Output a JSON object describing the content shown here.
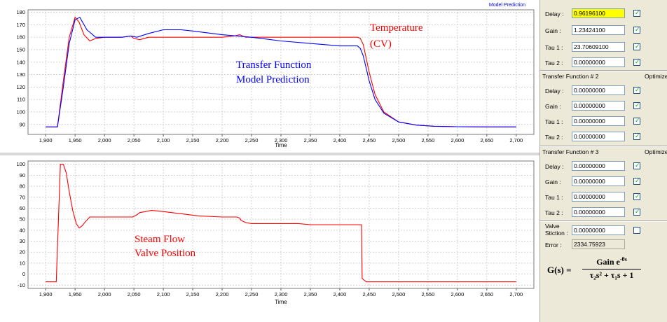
{
  "chart_data": [
    {
      "type": "line",
      "title": "",
      "corner_label": "Model Prediction",
      "xlabel": "Time",
      "ylabel": "",
      "xlim": [
        1870,
        2730
      ],
      "ylim": [
        82,
        182
      ],
      "x_ticks": [
        1900,
        1950,
        2000,
        2050,
        2100,
        2150,
        2200,
        2250,
        2300,
        2350,
        2400,
        2450,
        2500,
        2550,
        2600,
        2650,
        2700
      ],
      "x_tick_labels": [
        "1,900",
        "1,950",
        "2,000",
        "2,050",
        "2,100",
        "2,150",
        "2,200",
        "2,250",
        "2,300",
        "2,350",
        "2,400",
        "2,450",
        "2,500",
        "2,550",
        "2,600",
        "2,650",
        "2,700"
      ],
      "y_ticks": [
        90,
        100,
        110,
        120,
        130,
        140,
        150,
        160,
        170,
        180
      ],
      "grid": true,
      "annotations": [
        {
          "text": "Temperature",
          "color": "#ff0000"
        },
        {
          "text": "(CV)",
          "color": "#ff0000"
        },
        {
          "text": "Transfer Function",
          "color": "#0000ff"
        },
        {
          "text": "Model Prediction",
          "color": "#0000ff"
        }
      ],
      "series": [
        {
          "color": "#ff0000",
          "x": [
            1900,
            1915,
            1920,
            1930,
            1940,
            1950,
            1957,
            1965,
            1975,
            1985,
            2000,
            2030,
            2045,
            2050,
            2060,
            2075,
            2100,
            2150,
            2200,
            2220,
            2230,
            2240,
            2260,
            2300,
            2350,
            2400,
            2430,
            2435,
            2440,
            2450,
            2460,
            2475,
            2500,
            2530,
            2560,
            2600,
            2650,
            2700
          ],
          "y": [
            88,
            88,
            88,
            125,
            160,
            176,
            172,
            162,
            157,
            159,
            160,
            160,
            161,
            159,
            158,
            160,
            160,
            160,
            160,
            161,
            162,
            160,
            160,
            160,
            160,
            160,
            160,
            159,
            154,
            132,
            114,
            100,
            92,
            89.5,
            88.5,
            88.2,
            88,
            88
          ]
        },
        {
          "color": "#0000ff",
          "x": [
            1900,
            1920,
            1930,
            1940,
            1950,
            1958,
            1970,
            1985,
            2000,
            2030,
            2045,
            2055,
            2075,
            2100,
            2130,
            2150,
            2200,
            2250,
            2300,
            2350,
            2400,
            2430,
            2435,
            2440,
            2450,
            2460,
            2475,
            2500,
            2530,
            2560,
            2600,
            2650,
            2700
          ],
          "y": [
            88,
            88,
            120,
            155,
            174,
            176,
            166,
            160,
            160,
            160,
            161,
            160,
            163,
            166,
            166,
            165,
            162,
            160,
            157,
            155,
            153,
            153,
            151,
            145,
            125,
            110,
            99,
            92,
            89.5,
            88.6,
            88.2,
            88,
            88
          ]
        }
      ]
    },
    {
      "type": "line",
      "title": "",
      "xlabel": "Time",
      "ylabel": "",
      "xlim": [
        1870,
        2730
      ],
      "ylim": [
        -13,
        103
      ],
      "x_ticks": [
        1900,
        1950,
        2000,
        2050,
        2100,
        2150,
        2200,
        2250,
        2300,
        2350,
        2400,
        2450,
        2500,
        2550,
        2600,
        2650,
        2700
      ],
      "x_tick_labels": [
        "1,900",
        "1,950",
        "2,000",
        "2,050",
        "2,100",
        "2,150",
        "2,200",
        "2,250",
        "2,300",
        "2,350",
        "2,400",
        "2,450",
        "2,500",
        "2,550",
        "2,600",
        "2,650",
        "2,700"
      ],
      "y_ticks": [
        -10,
        0,
        10,
        20,
        30,
        40,
        50,
        60,
        70,
        80,
        90,
        100
      ],
      "grid": true,
      "annotations": [
        {
          "text": "Steam Flow",
          "color": "#ff0000"
        },
        {
          "text": "Valve Position",
          "color": "#ff0000"
        }
      ],
      "series": [
        {
          "color": "#ff0000",
          "x": [
            1900,
            1917,
            1918,
            1925,
            1930,
            1935,
            1940,
            1946,
            1952,
            1957,
            1962,
            1968,
            1975,
            1985,
            2000,
            2020,
            2040,
            2048,
            2055,
            2060,
            2070,
            2080,
            2100,
            2130,
            2160,
            2200,
            2225,
            2230,
            2232,
            2240,
            2250,
            2270,
            2300,
            2330,
            2350,
            2380,
            2400,
            2420,
            2437,
            2438,
            2445,
            2500,
            2550,
            2600,
            2650,
            2700
          ],
          "y": [
            -7,
            -7,
            -7,
            100,
            100,
            92,
            75,
            58,
            46,
            42,
            44,
            48,
            52,
            52,
            52,
            52,
            52,
            52,
            54,
            56,
            57,
            58,
            57,
            55,
            53,
            52,
            52,
            51,
            49,
            47,
            46,
            46,
            46,
            46,
            45,
            45,
            45,
            45,
            45,
            -4,
            -7,
            -7,
            -7,
            -7,
            -7,
            -7
          ]
        }
      ]
    }
  ],
  "panel": {
    "tf1": {
      "delay_label": "Delay :",
      "delay_value": "0.96196100",
      "gain_label": "Gain  :",
      "gain_value": "1.23424100",
      "tau1_label": "Tau 1 :",
      "tau1_value": "23.70609100",
      "tau2_label": "Tau 2 :",
      "tau2_value": "0.00000000"
    },
    "tf2": {
      "header": "Transfer Function # 2",
      "optimize": "Optimize",
      "delay_label": "Delay :",
      "delay_value": "0.00000000",
      "gain_label": "Gain  :",
      "gain_value": "0.00000000",
      "tau1_label": "Tau 1 :",
      "tau1_value": "0.00000000",
      "tau2_label": "Tau 2 :",
      "tau2_value": "0.00000000"
    },
    "tf3": {
      "header": "Transfer Function # 3",
      "optimize": "Optimize",
      "delay_label": "Delay :",
      "delay_value": "0.00000000",
      "gain_label": "Gain  :",
      "gain_value": "0.00000000",
      "tau1_label": "Tau 1 :",
      "tau1_value": "0.00000000",
      "tau2_label": "Tau 2 :",
      "tau2_value": "0.00000000"
    },
    "valve_label_1": "Valve",
    "valve_label_2": "Stiction :",
    "valve_value": "0.00000000",
    "error_label": "Error :",
    "error_value": "2334.75923",
    "check_mark": "✓",
    "formula": {
      "lhs": "G(s) =",
      "numerator": "Gain e",
      "numerator_exp": "-θs",
      "denominator": "τ₂s² + τ₁s + 1"
    }
  }
}
